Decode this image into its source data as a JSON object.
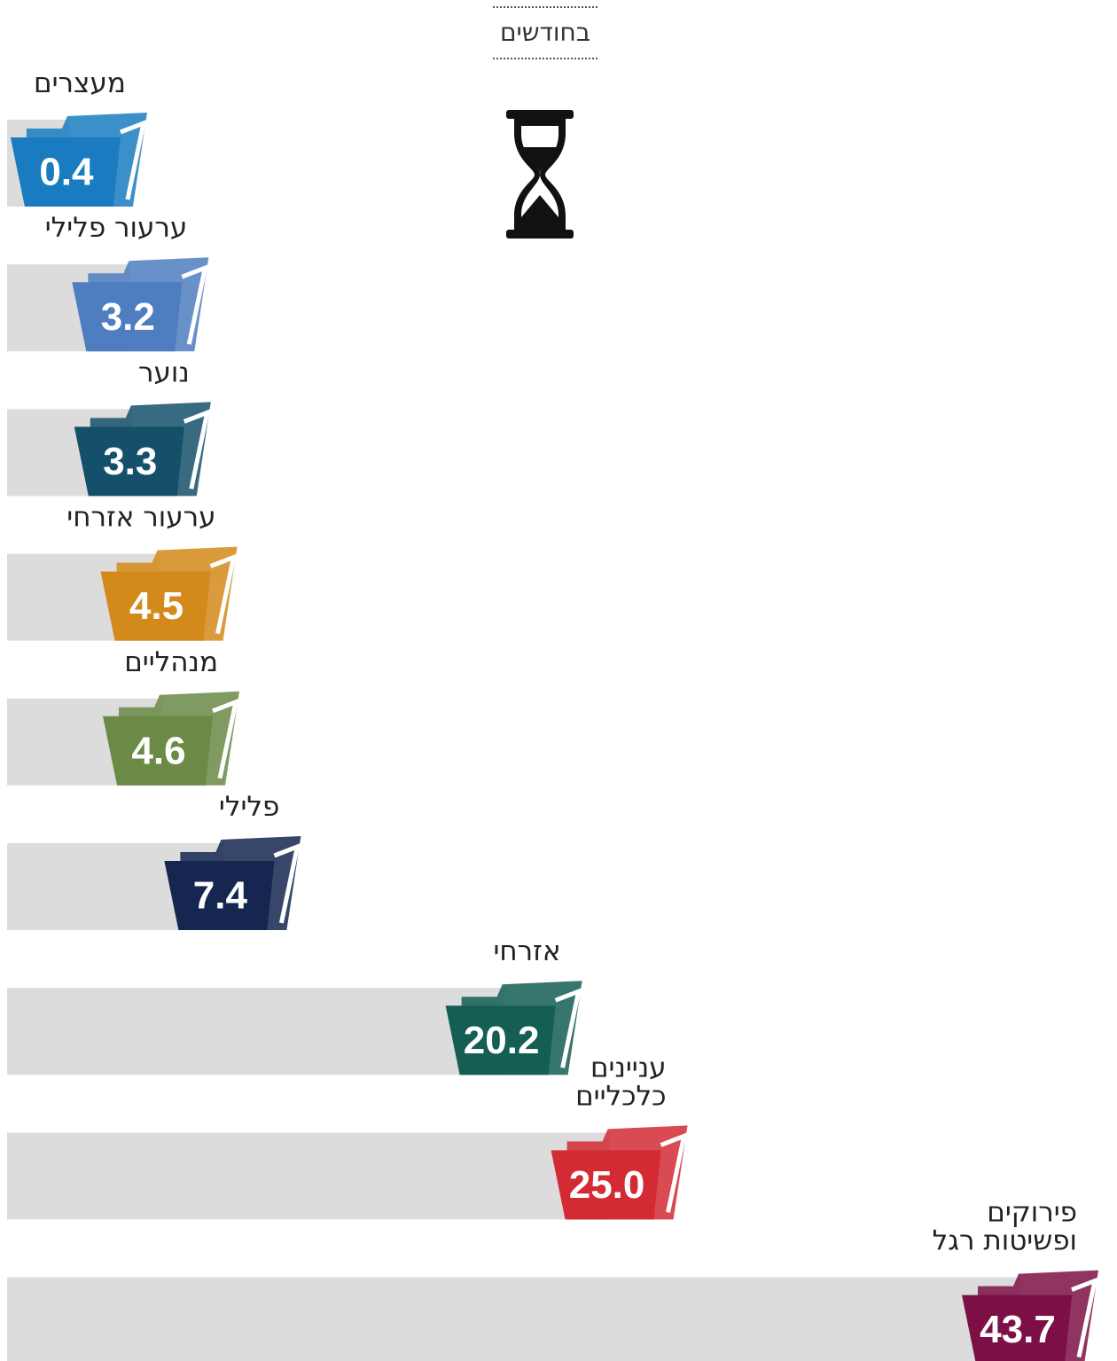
{
  "chart_data": {
    "type": "bar",
    "orientation": "horizontal",
    "title": "בחודשים",
    "categories": [
      "מעצרים",
      "ערעור פלילי",
      "נוער",
      "ערעור אזרחי",
      "מנהליים",
      "פלילי",
      "אזרחי",
      "עניינים\nכלכליים",
      "פירוקים\nופשיטות רגל"
    ],
    "values": [
      0.4,
      3.2,
      3.3,
      4.5,
      4.6,
      7.4,
      20.2,
      25.0,
      43.7
    ],
    "value_labels": [
      "0.4",
      "3.2",
      "3.3",
      "4.5",
      "4.6",
      "7.4",
      "20.2",
      "25.0",
      "43.7"
    ],
    "colors": [
      "#1a7cc0",
      "#4e7ec0",
      "#15506b",
      "#d4891b",
      "#6a8a46",
      "#152650",
      "#145e54",
      "#d42a34",
      "#7c1046"
    ]
  }
}
